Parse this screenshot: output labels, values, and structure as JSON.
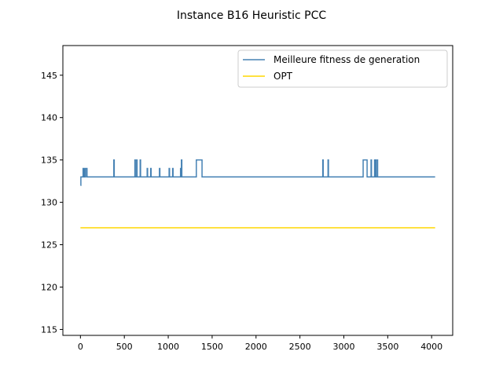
{
  "chart_data": {
    "type": "line",
    "title": "Instance B16 Heuristic PCC",
    "xlabel": "",
    "ylabel": "",
    "xlim": [
      -200,
      4240
    ],
    "ylim": [
      114.3,
      148.5
    ],
    "xticks": [
      0,
      500,
      1000,
      1500,
      2000,
      2500,
      3000,
      3500,
      4000
    ],
    "yticks": [
      115,
      120,
      125,
      130,
      135,
      140,
      145
    ],
    "grid": false,
    "legend_position": "top-right",
    "series": [
      {
        "name": "Meilleure fitness de generation",
        "color": "#4682b4",
        "step": true,
        "x": [
          0,
          5,
          20,
          30,
          35,
          45,
          50,
          55,
          60,
          70,
          75,
          380,
          385,
          620,
          625,
          640,
          645,
          680,
          685,
          720,
          725,
          760,
          765,
          800,
          805,
          900,
          905,
          920,
          925,
          1010,
          1015,
          1050,
          1055,
          1140,
          1145,
          1150,
          1155,
          1160,
          1165,
          1320,
          1325,
          1380,
          1385,
          2760,
          2765,
          2820,
          2825,
          3220,
          3225,
          3260,
          3265,
          3310,
          3315,
          3350,
          3355,
          3360,
          3365,
          3380,
          3385,
          4040
        ],
        "y": [
          132,
          133,
          133,
          134,
          133,
          134,
          133,
          133,
          134,
          134,
          133,
          135,
          133,
          135,
          133,
          135,
          133,
          135,
          133,
          133,
          133,
          134,
          133,
          134,
          133,
          134,
          133,
          133,
          133,
          134,
          133,
          134,
          133,
          134,
          133,
          135,
          133,
          133,
          133,
          135,
          135,
          135,
          133,
          135,
          133,
          135,
          133,
          135,
          135,
          135,
          133,
          135,
          133,
          135,
          133,
          135,
          133,
          135,
          133,
          133
        ]
      },
      {
        "name": "OPT",
        "color": "#ffd700",
        "step": false,
        "x": [
          0,
          4040
        ],
        "y": [
          127,
          127
        ]
      }
    ]
  }
}
